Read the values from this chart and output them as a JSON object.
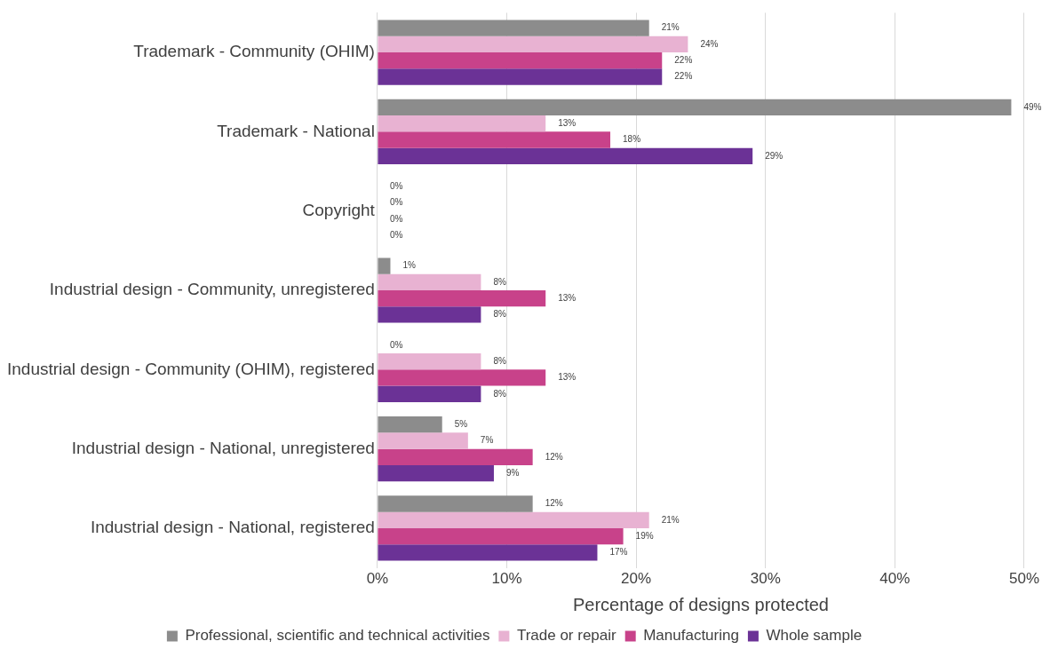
{
  "chart_data": {
    "type": "bar",
    "orientation": "horizontal",
    "xlabel": "Percentage of designs protected",
    "categories": [
      "Trademark - Community (OHIM)",
      "Trademark - National",
      "Copyright",
      "Industrial design - Community, unregistered",
      "Industrial design - Community (OHIM), registered",
      "Industrial design - National, unregistered",
      "Industrial design - National, registered"
    ],
    "series": [
      {
        "name": "Professional, scientific and technical activities",
        "color": "#8c8c8c",
        "values": [
          21,
          49,
          0,
          1,
          0,
          5,
          12
        ]
      },
      {
        "name": "Trade or repair",
        "color": "#e8b2d2",
        "values": [
          24,
          13,
          0,
          8,
          8,
          7,
          21
        ]
      },
      {
        "name": "Manufacturing",
        "color": "#c8428a",
        "values": [
          22,
          18,
          0,
          13,
          13,
          12,
          19
        ]
      },
      {
        "name": "Whole sample",
        "color": "#6b3296",
        "values": [
          22,
          29,
          0,
          8,
          8,
          9,
          17
        ]
      }
    ],
    "xlim": [
      0,
      50
    ],
    "xticks": [
      {
        "value": 0,
        "label": "0%"
      },
      {
        "value": 10,
        "label": "10%"
      },
      {
        "value": 20,
        "label": "20%"
      },
      {
        "value": 30,
        "label": "30%"
      },
      {
        "value": 40,
        "label": "40%"
      },
      {
        "value": 50,
        "label": "50%"
      }
    ],
    "value_labels": [
      [
        "21%",
        "49%",
        "0%",
        "1%",
        "0%",
        "5%",
        "12%"
      ],
      [
        "24%",
        "13%",
        "0%",
        "8%",
        "8%",
        "7%",
        "21%"
      ],
      [
        "22%",
        "18%",
        "0%",
        "13%",
        "13%",
        "12%",
        "19%"
      ],
      [
        "22%",
        "29%",
        "0%",
        "8%",
        "8%",
        "9%",
        "17%"
      ]
    ],
    "grid": "x",
    "legend": "bottom"
  }
}
